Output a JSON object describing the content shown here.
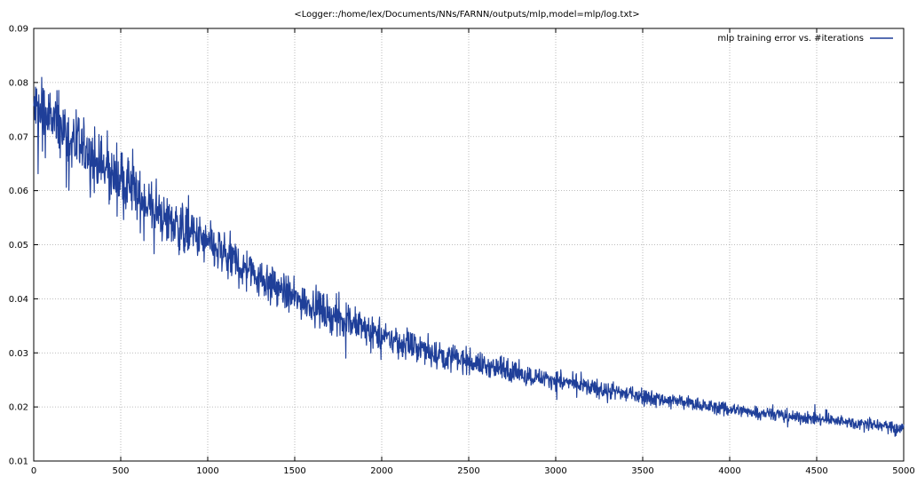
{
  "chart_data": {
    "type": "line",
    "title": "<Logger::/home/lex/Documents/NNs/FARNN/outputs/mlp,model=mlp/log.txt>",
    "xlabel": "",
    "ylabel": "",
    "xlim": [
      0,
      5000
    ],
    "ylim": [
      0.01,
      0.09
    ],
    "x_ticks": [
      0,
      500,
      1000,
      1500,
      2000,
      2500,
      3000,
      3500,
      4000,
      4500,
      5000
    ],
    "x_tick_labels": [
      "0",
      "500",
      "1000",
      "1500",
      "2000",
      "2500",
      "3000",
      "3500",
      "4000",
      "4500",
      "5000"
    ],
    "y_ticks": [
      0.01,
      0.02,
      0.03,
      0.04,
      0.05,
      0.06,
      0.07,
      0.08,
      0.09
    ],
    "y_tick_labels": [
      "0.01",
      "0.02",
      "0.03",
      "0.04",
      "0.05",
      "0.06",
      "0.07",
      "0.08",
      "0.09"
    ],
    "grid": true,
    "legend_position": "top-right",
    "series": [
      {
        "name": "mlp training error vs. #iterations",
        "color": "#1f3f99",
        "x": [
          0,
          50,
          100,
          150,
          200,
          250,
          300,
          400,
          500,
          600,
          700,
          800,
          900,
          1000,
          1100,
          1200,
          1300,
          1400,
          1500,
          1600,
          1700,
          1800,
          1900,
          2000,
          2100,
          2200,
          2300,
          2400,
          2500,
          2600,
          2700,
          2800,
          2900,
          3000,
          3200,
          3400,
          3600,
          3800,
          4000,
          4200,
          4400,
          4600,
          4800,
          5000
        ],
        "values": [
          0.075,
          0.074,
          0.073,
          0.072,
          0.07,
          0.068,
          0.067,
          0.064,
          0.062,
          0.059,
          0.056,
          0.054,
          0.052,
          0.05,
          0.048,
          0.046,
          0.044,
          0.042,
          0.04,
          0.039,
          0.037,
          0.036,
          0.0345,
          0.033,
          0.032,
          0.031,
          0.03,
          0.029,
          0.0285,
          0.0275,
          0.027,
          0.026,
          0.0255,
          0.025,
          0.0235,
          0.0225,
          0.0215,
          0.0205,
          0.0195,
          0.019,
          0.018,
          0.0175,
          0.0168,
          0.016
        ],
        "noise_amplitude": [
          0.006,
          0.006,
          0.006,
          0.0055,
          0.0055,
          0.005,
          0.005,
          0.005,
          0.005,
          0.0045,
          0.0045,
          0.0045,
          0.004,
          0.004,
          0.004,
          0.0035,
          0.0035,
          0.0035,
          0.003,
          0.003,
          0.003,
          0.003,
          0.0025,
          0.0025,
          0.0025,
          0.0022,
          0.0022,
          0.0022,
          0.002,
          0.002,
          0.0018,
          0.0018,
          0.0016,
          0.0016,
          0.0015,
          0.0014,
          0.0013,
          0.0012,
          0.0012,
          0.0011,
          0.001,
          0.001,
          0.001,
          0.001
        ]
      }
    ]
  }
}
